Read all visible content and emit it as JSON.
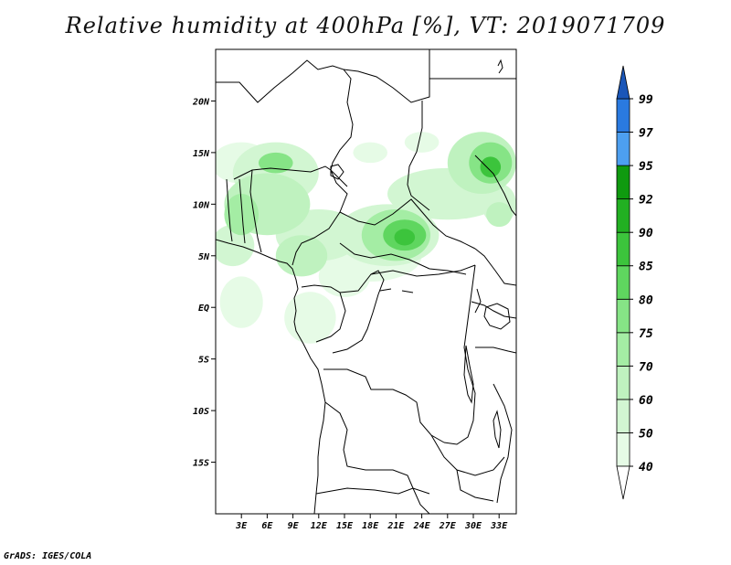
{
  "title": "Relative humidity at 400hPa [%], VT: 2019071709",
  "credit": "GrADS: IGES/COLA",
  "map": {
    "lon_range": [
      0,
      35
    ],
    "lat_range": [
      -20,
      25
    ],
    "lat_ticks": [
      {
        "value": 20,
        "label": "20N"
      },
      {
        "value": 15,
        "label": "15N"
      },
      {
        "value": 10,
        "label": "10N"
      },
      {
        "value": 5,
        "label": "5N"
      },
      {
        "value": 0,
        "label": "EQ"
      },
      {
        "value": -5,
        "label": "5S"
      },
      {
        "value": -10,
        "label": "10S"
      },
      {
        "value": -15,
        "label": "15S"
      }
    ],
    "lon_ticks": [
      {
        "value": 3,
        "label": "3E"
      },
      {
        "value": 6,
        "label": "6E"
      },
      {
        "value": 9,
        "label": "9E"
      },
      {
        "value": 12,
        "label": "12E"
      },
      {
        "value": 15,
        "label": "15E"
      },
      {
        "value": 18,
        "label": "18E"
      },
      {
        "value": 21,
        "label": "21E"
      },
      {
        "value": 24,
        "label": "24E"
      },
      {
        "value": 27,
        "label": "27E"
      },
      {
        "value": 30,
        "label": "30E"
      },
      {
        "value": 33,
        "label": "33E"
      }
    ]
  },
  "colorbar": {
    "levels": [
      {
        "label": "40",
        "color": "#e6fbe6"
      },
      {
        "label": "50",
        "color": "#d2f6d2"
      },
      {
        "label": "60",
        "color": "#bff2bf"
      },
      {
        "label": "70",
        "color": "#a4eda4"
      },
      {
        "label": "75",
        "color": "#86e486"
      },
      {
        "label": "80",
        "color": "#5fd65f"
      },
      {
        "label": "85",
        "color": "#3cc43c"
      },
      {
        "label": "90",
        "color": "#22b022"
      },
      {
        "label": "92",
        "color": "#0f9a0f"
      },
      {
        "label": "95",
        "color": "#4d9ff0"
      },
      {
        "label": "97",
        "color": "#2a7ae0"
      },
      {
        "label": "99",
        "color": "#1e5ec8"
      }
    ],
    "below_color": "#ffffff",
    "above_color": "#1a56b8"
  },
  "humidity_blobs": [
    {
      "lon": 3,
      "lat": 14,
      "rlon": 3.5,
      "rlat": 2,
      "level": 0
    },
    {
      "lon": 7,
      "lat": 13,
      "rlon": 5,
      "rlat": 3,
      "level": 1
    },
    {
      "lon": 6,
      "lat": 10,
      "rlon": 5,
      "rlat": 3,
      "level": 2
    },
    {
      "lon": 7,
      "lat": 14,
      "rlon": 2,
      "rlat": 1,
      "level": 4
    },
    {
      "lon": 3,
      "lat": 9,
      "rlon": 2,
      "rlat": 2,
      "level": 3
    },
    {
      "lon": 2,
      "lat": 6,
      "rlon": 2.5,
      "rlat": 2,
      "level": 1
    },
    {
      "lon": 12,
      "lat": 7,
      "rlon": 5,
      "rlat": 2.5,
      "level": 1
    },
    {
      "lon": 10,
      "lat": 5,
      "rlon": 3,
      "rlat": 2,
      "level": 2
    },
    {
      "lon": 20,
      "lat": 7,
      "rlon": 6,
      "rlat": 3,
      "level": 1
    },
    {
      "lon": 21,
      "lat": 7,
      "rlon": 4,
      "rlat": 2.5,
      "level": 3
    },
    {
      "lon": 22,
      "lat": 7,
      "rlon": 2.5,
      "rlat": 1.5,
      "level": 5
    },
    {
      "lon": 22,
      "lat": 6.8,
      "rlon": 1.2,
      "rlat": 0.8,
      "level": 6
    },
    {
      "lon": 18,
      "lat": 5,
      "rlon": 6,
      "rlat": 2.5,
      "level": 0
    },
    {
      "lon": 27,
      "lat": 11,
      "rlon": 7,
      "rlat": 2.5,
      "level": 1
    },
    {
      "lon": 31,
      "lat": 14,
      "rlon": 4,
      "rlat": 3,
      "level": 2
    },
    {
      "lon": 32,
      "lat": 14,
      "rlon": 2.5,
      "rlat": 2,
      "level": 4
    },
    {
      "lon": 32,
      "lat": 13.6,
      "rlon": 1.2,
      "rlat": 1,
      "level": 6
    },
    {
      "lon": 33,
      "lat": 10,
      "rlon": 2,
      "rlat": 2,
      "level": 1
    },
    {
      "lon": 18,
      "lat": 15,
      "rlon": 2,
      "rlat": 1,
      "level": 0
    },
    {
      "lon": 24,
      "lat": 16,
      "rlon": 2,
      "rlat": 1,
      "level": 0
    },
    {
      "lon": 3,
      "lat": 0.5,
      "rlon": 2.5,
      "rlat": 2.5,
      "level": 0
    },
    {
      "lon": 11,
      "lat": -1,
      "rlon": 3,
      "rlat": 2.5,
      "level": 0
    },
    {
      "lon": 15,
      "lat": 3,
      "rlon": 3,
      "rlat": 2,
      "level": 0
    },
    {
      "lon": 33,
      "lat": 9,
      "rlon": 1.5,
      "rlat": 1.2,
      "level": 2
    }
  ]
}
